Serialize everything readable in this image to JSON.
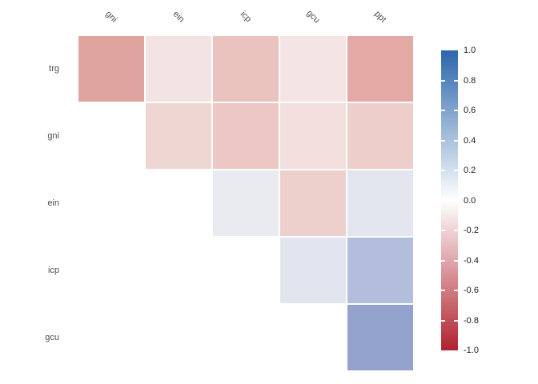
{
  "figure": {
    "background": "#ffffff",
    "axis_label_color": "#4d4d4d",
    "colorbar_label_color": "#1a1a1a"
  },
  "chart_data": {
    "type": "heatmap",
    "subtype": "correlation-matrix-upper-triangle",
    "title": "",
    "xlabel": "",
    "ylabel": "",
    "variables": [
      "trg",
      "gni",
      "ein",
      "icp",
      "gcu",
      "ppt"
    ],
    "row_labels": [
      "trg",
      "gni",
      "ein",
      "icp",
      "gcu"
    ],
    "col_labels": [
      "gni",
      "ein",
      "icp",
      "gcu",
      "ppt"
    ],
    "cells": [
      {
        "row": "trg",
        "col": "gni",
        "value": -0.4,
        "color": "#e0a49f"
      },
      {
        "row": "trg",
        "col": "ein",
        "value": -0.12,
        "color": "#f3e3e3"
      },
      {
        "row": "trg",
        "col": "icp",
        "value": -0.26,
        "color": "#eac3bf"
      },
      {
        "row": "trg",
        "col": "gcu",
        "value": -0.11,
        "color": "#f4e4e3"
      },
      {
        "row": "trg",
        "col": "ppt",
        "value": -0.38,
        "color": "#e4a9a4"
      },
      {
        "row": "gni",
        "col": "ein",
        "value": -0.18,
        "color": "#eed6d2"
      },
      {
        "row": "gni",
        "col": "icp",
        "value": -0.25,
        "color": "#ecc7c3"
      },
      {
        "row": "gni",
        "col": "gcu",
        "value": -0.13,
        "color": "#f2dfde"
      },
      {
        "row": "gni",
        "col": "ppt",
        "value": -0.21,
        "color": "#edceca"
      },
      {
        "row": "ein",
        "col": "icp",
        "value": 0.1,
        "color": "#e9ebf1"
      },
      {
        "row": "ein",
        "col": "gcu",
        "value": -0.2,
        "color": "#edd0cb"
      },
      {
        "row": "ein",
        "col": "ppt",
        "value": 0.13,
        "color": "#e3e6ef"
      },
      {
        "row": "icp",
        "col": "gcu",
        "value": 0.14,
        "color": "#e2e5ef"
      },
      {
        "row": "icp",
        "col": "ppt",
        "value": 0.42,
        "color": "#b2bedb"
      },
      {
        "row": "gcu",
        "col": "ppt",
        "value": 0.55,
        "color": "#93a3ce"
      }
    ],
    "colorbar": {
      "min": -1.0,
      "max": 1.0,
      "tick_labels": [
        "1.0",
        "0.8",
        "0.6",
        "0.4",
        "0.2",
        "0.0",
        "-0.2",
        "-0.4",
        "-0.6",
        "-0.8",
        "-1.0"
      ],
      "high_color": "#2b66ab",
      "mid_color": "#ffffff",
      "low_color": "#b0222f",
      "position": "right"
    },
    "legend_position": "right",
    "grid": false
  }
}
